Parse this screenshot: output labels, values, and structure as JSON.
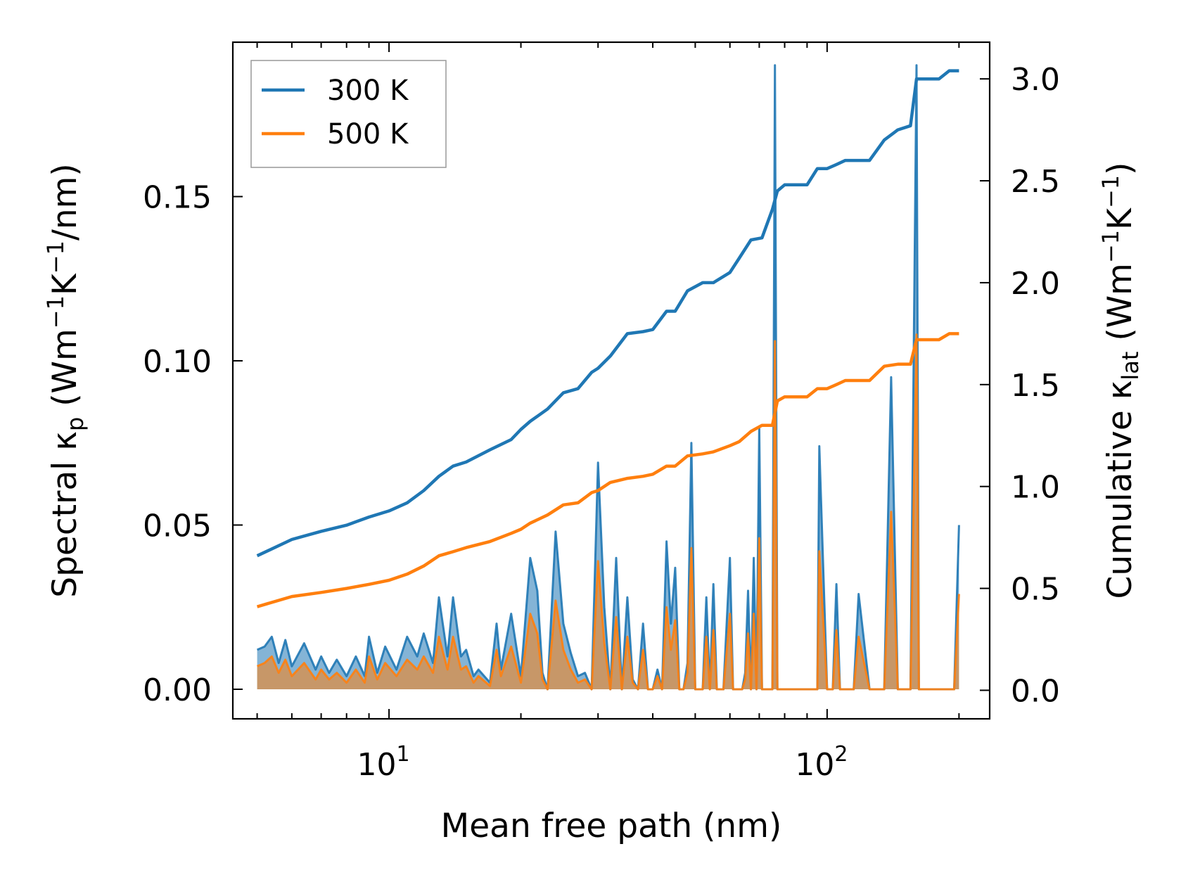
{
  "chart_data": {
    "type": "line",
    "xscale": "log",
    "xlabel": "Mean free path (nm)",
    "ylabel_left": {
      "main": "Spectral κ",
      "sub": "p",
      "unit_open": " (Wm",
      "sup1": "−1",
      "unit_mid": "K",
      "sup2": "−1",
      "unit_close": "/nm)"
    },
    "ylabel_right": {
      "main": "Cumulative κ",
      "sub": "lat",
      "unit_open": " (Wm",
      "sup1": "−1",
      "unit_mid": "K",
      "sup2": "−1",
      "unit_close": ")"
    },
    "xlim": [
      4.4,
      235
    ],
    "ylim_left": [
      -0.009,
      0.197
    ],
    "ylim_right": [
      -0.14,
      3.18
    ],
    "x_major_ticks": [
      10,
      100
    ],
    "x_tick_labels": [
      {
        "base": "10",
        "exp": "1"
      },
      {
        "base": "10",
        "exp": "2"
      }
    ],
    "y_left_ticks": [
      0.0,
      0.05,
      0.1,
      0.15
    ],
    "y_left_tick_labels": [
      "0.00",
      "0.05",
      "0.10",
      "0.15"
    ],
    "y_right_ticks": [
      0.0,
      0.5,
      1.0,
      1.5,
      2.0,
      2.5,
      3.0
    ],
    "y_right_tick_labels": [
      "0.0",
      "0.5",
      "1.0",
      "1.5",
      "2.0",
      "2.5",
      "3.0"
    ],
    "legend": {
      "location": "upper-left",
      "entries": [
        {
          "label": "300 K",
          "color": "#1f77b4"
        },
        {
          "label": "500 K",
          "color": "#ff7f0e"
        }
      ]
    },
    "cumulative_series": [
      {
        "name": "300 K",
        "color": "#1f77b4",
        "x": [
          5,
          6,
          7,
          8,
          9,
          10,
          11,
          12,
          13,
          14,
          15,
          17,
          19,
          20,
          21,
          23,
          25,
          27,
          29,
          30,
          32,
          35,
          38,
          40,
          43,
          45,
          48,
          52,
          55,
          60,
          63,
          67,
          71,
          75,
          77,
          80,
          90,
          95,
          100,
          105,
          110,
          125,
          135,
          145,
          155,
          160,
          165,
          180,
          190,
          200
        ],
        "y": [
          0.66,
          0.74,
          0.78,
          0.81,
          0.85,
          0.88,
          0.92,
          0.98,
          1.05,
          1.1,
          1.12,
          1.18,
          1.23,
          1.28,
          1.32,
          1.38,
          1.46,
          1.48,
          1.56,
          1.58,
          1.64,
          1.75,
          1.76,
          1.77,
          1.86,
          1.86,
          1.96,
          2.0,
          2.0,
          2.05,
          2.12,
          2.21,
          2.22,
          2.36,
          2.45,
          2.48,
          2.48,
          2.56,
          2.56,
          2.58,
          2.6,
          2.6,
          2.7,
          2.75,
          2.77,
          3.0,
          3.0,
          3.0,
          3.04,
          3.04
        ]
      },
      {
        "name": "500 K",
        "color": "#ff7f0e",
        "x": [
          5,
          6,
          7,
          8,
          9,
          10,
          11,
          12,
          13,
          14,
          15,
          17,
          19,
          20,
          21,
          23,
          25,
          27,
          29,
          30,
          32,
          35,
          38,
          40,
          43,
          45,
          48,
          52,
          55,
          60,
          63,
          67,
          71,
          75,
          77,
          80,
          90,
          95,
          100,
          105,
          110,
          125,
          135,
          145,
          155,
          160,
          165,
          180,
          190,
          200
        ],
        "y": [
          0.41,
          0.46,
          0.48,
          0.5,
          0.52,
          0.54,
          0.57,
          0.61,
          0.66,
          0.68,
          0.7,
          0.73,
          0.77,
          0.79,
          0.82,
          0.86,
          0.91,
          0.92,
          0.97,
          0.98,
          1.02,
          1.04,
          1.05,
          1.06,
          1.1,
          1.1,
          1.15,
          1.16,
          1.17,
          1.2,
          1.22,
          1.27,
          1.3,
          1.3,
          1.42,
          1.44,
          1.44,
          1.48,
          1.48,
          1.5,
          1.52,
          1.52,
          1.59,
          1.6,
          1.6,
          1.72,
          1.72,
          1.72,
          1.75,
          1.75
        ]
      }
    ],
    "spectral_series": [
      {
        "name": "300 K",
        "color": "#1f77b4",
        "x": [
          5,
          5.2,
          5.4,
          5.6,
          5.8,
          6,
          6.4,
          6.8,
          7,
          7.3,
          7.6,
          8,
          8.4,
          8.8,
          9,
          9.4,
          9.8,
          10.4,
          11,
          11.6,
          12,
          12.6,
          13,
          13.6,
          14,
          14.6,
          15,
          15.6,
          16,
          17,
          17.6,
          18,
          19,
          20,
          21,
          21.8,
          22.4,
          23,
          24,
          25,
          26,
          27,
          28,
          29,
          30,
          31,
          32,
          33,
          34,
          35,
          36,
          37,
          38,
          39,
          40,
          41,
          42,
          43,
          44,
          45,
          46,
          47,
          48,
          49,
          50,
          51,
          52,
          53,
          54,
          55,
          56,
          57,
          58,
          60,
          61,
          62,
          63,
          64,
          65,
          66,
          67,
          68,
          69,
          70,
          71,
          72,
          73,
          74,
          75,
          76,
          77,
          78,
          79,
          80,
          90,
          95,
          96,
          100,
          103,
          105,
          107,
          110,
          115,
          118,
          125,
          130,
          135,
          140,
          145,
          150,
          155,
          160,
          162,
          165,
          170,
          180,
          190,
          195,
          200
        ],
        "y": [
          0.012,
          0.013,
          0.016,
          0.008,
          0.015,
          0.007,
          0.014,
          0.006,
          0.01,
          0.005,
          0.009,
          0.004,
          0.01,
          0.004,
          0.016,
          0.005,
          0.013,
          0.006,
          0.016,
          0.01,
          0.017,
          0.008,
          0.028,
          0.01,
          0.028,
          0.01,
          0.012,
          0.004,
          0.006,
          0.002,
          0.02,
          0.006,
          0.023,
          0.004,
          0.04,
          0.03,
          0.005,
          0.0,
          0.048,
          0.02,
          0.011,
          0.004,
          0.005,
          0.0,
          0.069,
          0.025,
          0.0,
          0.04,
          0.0,
          0.028,
          0.003,
          0.0,
          0.02,
          0.0,
          0.0,
          0.006,
          0.0,
          0.045,
          0.02,
          0.037,
          0.0,
          0.0,
          0.008,
          0.075,
          0.0,
          0.0,
          0.0,
          0.028,
          0.0,
          0.032,
          0.0,
          0.0,
          0.0,
          0.04,
          0.0,
          0.0,
          0.0,
          0.0,
          0.005,
          0.03,
          0.0,
          0.04,
          0.0,
          0.08,
          0.0,
          0.0,
          0.0,
          0.0,
          0.0,
          0.19,
          0.0,
          0.0,
          0.0,
          0.0,
          0.0,
          0.0,
          0.074,
          0.0,
          0.0,
          0.032,
          0.0,
          0.0,
          0.0,
          0.029,
          0.0,
          0.0,
          0.0,
          0.095,
          0.0,
          0.0,
          0.0,
          0.19,
          0.0,
          0.0,
          0.0,
          0.0,
          0.0,
          0.0,
          0.05
        ]
      },
      {
        "name": "500 K",
        "color": "#ff7f0e",
        "x": [
          5,
          5.2,
          5.4,
          5.6,
          5.8,
          6,
          6.4,
          6.8,
          7,
          7.3,
          7.6,
          8,
          8.4,
          8.8,
          9,
          9.4,
          9.8,
          10.4,
          11,
          11.6,
          12,
          12.6,
          13,
          13.6,
          14,
          14.6,
          15,
          15.6,
          16,
          17,
          17.6,
          18,
          19,
          20,
          21,
          21.8,
          22.4,
          23,
          24,
          25,
          26,
          27,
          28,
          29,
          30,
          31,
          32,
          33,
          34,
          35,
          36,
          37,
          38,
          39,
          40,
          41,
          42,
          43,
          44,
          45,
          46,
          47,
          48,
          49,
          50,
          51,
          52,
          53,
          54,
          55,
          56,
          57,
          58,
          60,
          61,
          62,
          63,
          64,
          65,
          66,
          67,
          68,
          69,
          70,
          71,
          72,
          73,
          74,
          75,
          76,
          77,
          78,
          79,
          80,
          90,
          95,
          96,
          100,
          103,
          105,
          107,
          110,
          115,
          118,
          125,
          130,
          135,
          140,
          145,
          150,
          155,
          160,
          162,
          165,
          170,
          180,
          190,
          195,
          200
        ],
        "y": [
          0.007,
          0.008,
          0.01,
          0.005,
          0.009,
          0.004,
          0.008,
          0.003,
          0.006,
          0.003,
          0.005,
          0.002,
          0.006,
          0.002,
          0.01,
          0.003,
          0.008,
          0.004,
          0.009,
          0.006,
          0.01,
          0.005,
          0.016,
          0.006,
          0.016,
          0.006,
          0.007,
          0.002,
          0.004,
          0.001,
          0.012,
          0.004,
          0.013,
          0.002,
          0.023,
          0.017,
          0.003,
          0.0,
          0.027,
          0.012,
          0.006,
          0.002,
          0.003,
          0.0,
          0.039,
          0.014,
          0.0,
          0.022,
          0.0,
          0.016,
          0.002,
          0.0,
          0.012,
          0.0,
          0.0,
          0.004,
          0.0,
          0.025,
          0.012,
          0.021,
          0.0,
          0.0,
          0.005,
          0.043,
          0.0,
          0.0,
          0.0,
          0.016,
          0.0,
          0.018,
          0.0,
          0.0,
          0.0,
          0.023,
          0.0,
          0.0,
          0.0,
          0.0,
          0.003,
          0.017,
          0.0,
          0.023,
          0.0,
          0.046,
          0.0,
          0.0,
          0.0,
          0.0,
          0.0,
          0.106,
          0.0,
          0.0,
          0.0,
          0.0,
          0.0,
          0.0,
          0.042,
          0.0,
          0.0,
          0.018,
          0.0,
          0.0,
          0.0,
          0.016,
          0.0,
          0.0,
          0.0,
          0.054,
          0.0,
          0.0,
          0.0,
          0.108,
          0.0,
          0.0,
          0.0,
          0.0,
          0.0,
          0.0,
          0.029
        ]
      }
    ]
  }
}
